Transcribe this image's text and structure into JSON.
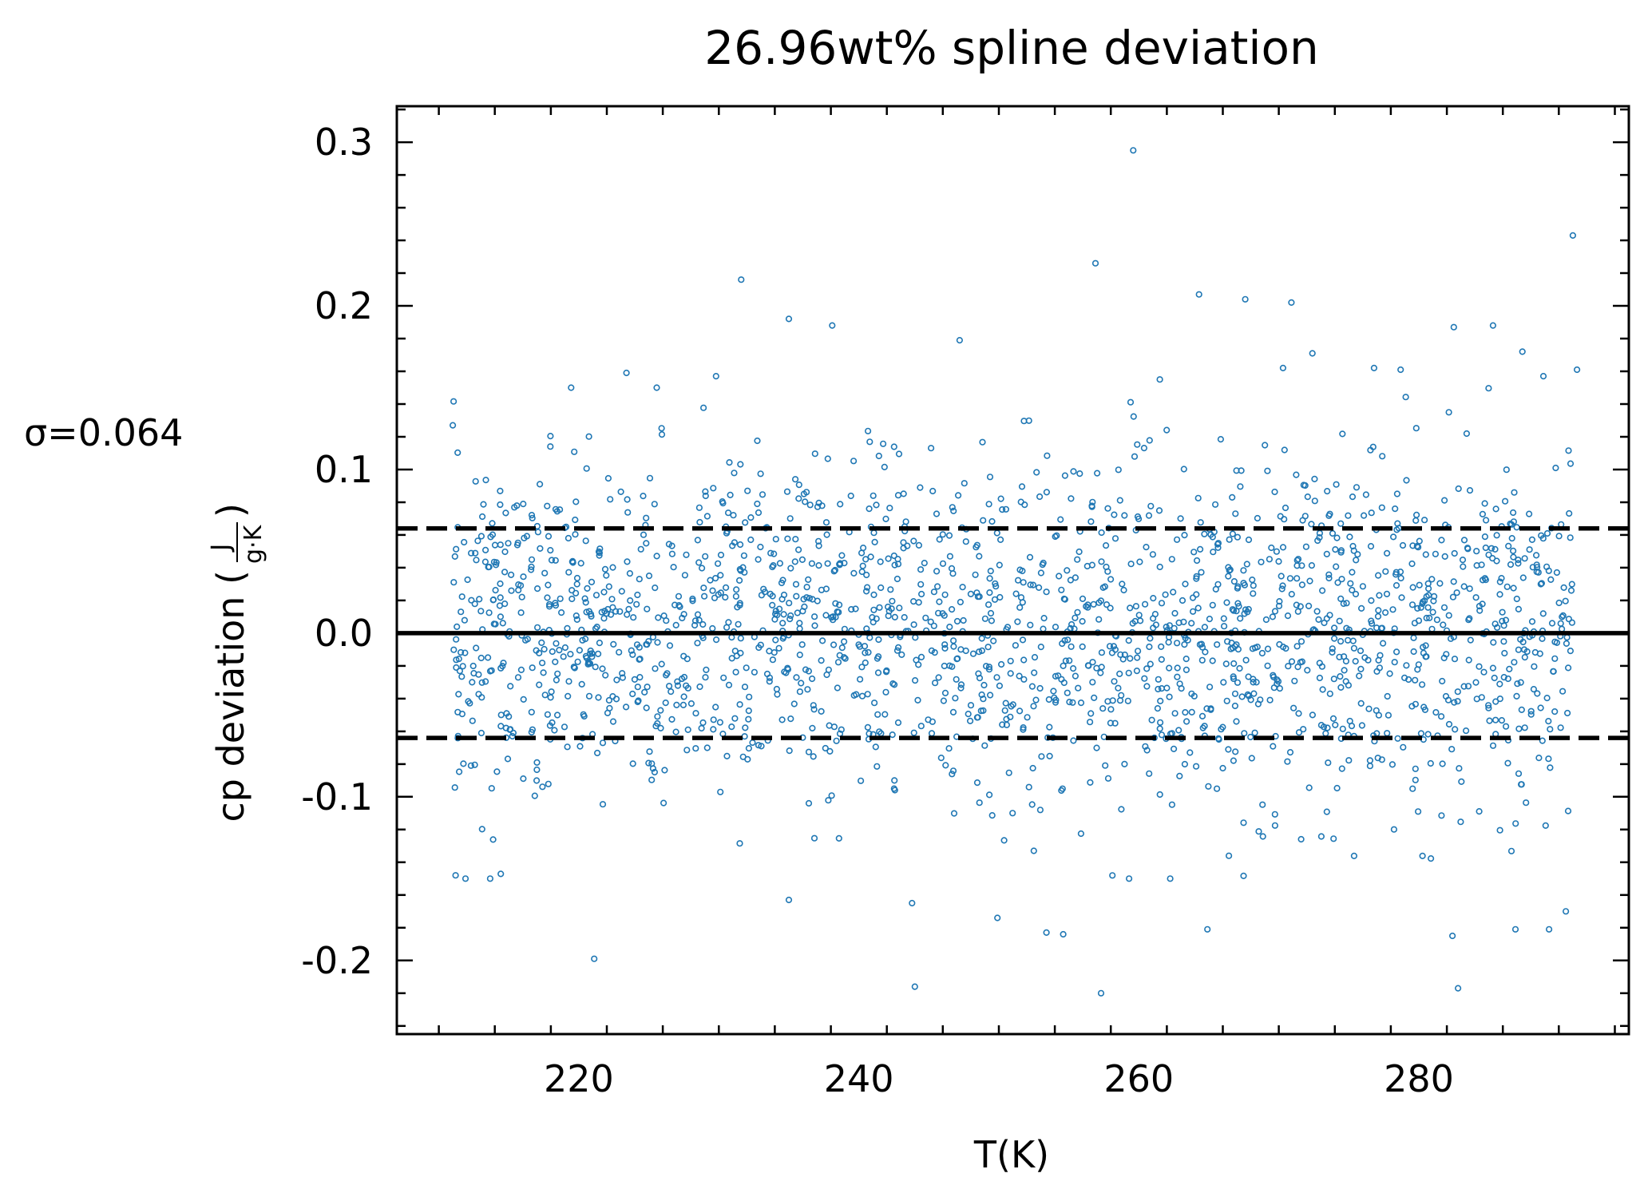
{
  "chart_data": {
    "type": "scatter",
    "title": "26.96wt% spline deviation",
    "xlabel": "T(K)",
    "ylabel": "cp deviation (J/g·K)",
    "ylabel_main": "cp deviation (",
    "ylabel_num": "J",
    "ylabel_den": "g·K",
    "ylabel_close": ")",
    "annotation": "σ=0.064",
    "sigma": 0.064,
    "xlim": [
      207,
      295
    ],
    "ylim": [
      -0.245,
      0.322
    ],
    "x_ticks": [
      220,
      240,
      260,
      280
    ],
    "x_tick_labels": [
      "220",
      "240",
      "260",
      "280"
    ],
    "y_ticks": [
      -0.2,
      -0.1,
      0.0,
      0.1,
      0.2,
      0.3
    ],
    "y_tick_labels": [
      "-0.2",
      "-0.1",
      "0.0",
      "0.1",
      "0.2",
      "0.3"
    ],
    "grid": false,
    "series_color": "#1f77b4",
    "reference_lines": [
      {
        "y": 0.0,
        "style": "solid"
      },
      {
        "y": 0.064,
        "style": "dashed"
      },
      {
        "y": -0.064,
        "style": "dashed"
      }
    ],
    "t_range": [
      211,
      291
    ],
    "n_points": 2000,
    "points": [
      [
        211.0,
        0.127
      ],
      [
        211.2,
        -0.148
      ],
      [
        231.6,
        0.216
      ],
      [
        235.0,
        0.192
      ],
      [
        238.1,
        0.188
      ],
      [
        247.2,
        0.179
      ],
      [
        256.9,
        0.226
      ],
      [
        259.6,
        0.295
      ],
      [
        264.3,
        0.207
      ],
      [
        267.6,
        0.204
      ],
      [
        270.9,
        0.202
      ],
      [
        282.5,
        0.187
      ],
      [
        285.3,
        0.188
      ],
      [
        291.0,
        0.243
      ],
      [
        221.1,
        -0.199
      ],
      [
        244.0,
        -0.216
      ],
      [
        257.3,
        -0.22
      ],
      [
        282.8,
        -0.217
      ],
      [
        282.4,
        -0.185
      ],
      [
        253.4,
        -0.183
      ],
      [
        254.6,
        -0.184
      ],
      [
        264.9,
        -0.181
      ],
      [
        286.9,
        -0.181
      ],
      [
        289.3,
        -0.181
      ],
      [
        290.5,
        -0.17
      ],
      [
        249.9,
        -0.174
      ],
      [
        243.8,
        -0.165
      ],
      [
        235.0,
        -0.163
      ],
      [
        223.4,
        0.159
      ],
      [
        229.8,
        0.157
      ],
      [
        261.5,
        0.155
      ],
      [
        270.3,
        0.162
      ],
      [
        272.4,
        0.171
      ],
      [
        276.8,
        0.162
      ],
      [
        278.7,
        0.161
      ],
      [
        287.4,
        0.172
      ],
      [
        288.9,
        0.157
      ],
      [
        291.3,
        0.161
      ]
    ]
  }
}
